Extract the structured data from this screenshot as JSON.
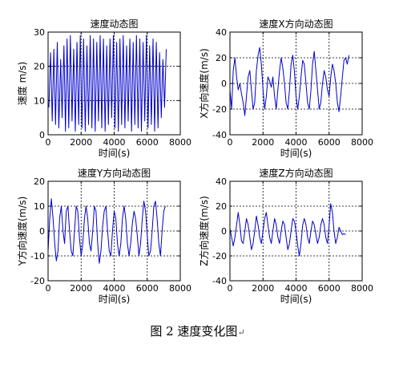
{
  "figure_caption": {
    "text": "图 2  速度变化图",
    "trailing_mark": "↵"
  },
  "chart_data": [
    {
      "type": "line",
      "title": "速度动态图",
      "xlabel": "时间(s)",
      "ylabel": "速度 m/s)",
      "xlim": [
        0,
        8000
      ],
      "ylim": [
        0,
        30
      ],
      "xticks": [
        0,
        2000,
        4000,
        6000,
        8000
      ],
      "yticks": [
        0,
        10,
        20,
        30
      ],
      "grid": "dashed",
      "color": "#0000cc",
      "series": [
        {
          "x": [
            50,
            150,
            250,
            350,
            450,
            560,
            650,
            760,
            850,
            960,
            1050,
            1150,
            1250,
            1350,
            1450,
            1550,
            1650,
            1750,
            1850,
            1950,
            2050,
            2150,
            2250,
            2350,
            2450,
            2550,
            2650,
            2750,
            2850,
            2950,
            3050,
            3150,
            3250,
            3350,
            3450,
            3550,
            3650,
            3750,
            3850,
            3950,
            4050,
            4150,
            4250,
            4350,
            4450,
            4550,
            4650,
            4750,
            4850,
            4950,
            5050,
            5150,
            5250,
            5350,
            5450,
            5550,
            5650,
            5750,
            5850,
            5950,
            6050,
            6150,
            6250,
            6350,
            6450,
            6550,
            6650,
            6750,
            6850,
            6950,
            7050,
            7150
          ],
          "values": [
            8,
            24,
            4,
            25,
            3,
            27,
            2,
            22,
            5,
            26,
            1,
            28,
            2,
            29,
            4,
            25,
            1,
            27,
            3,
            29,
            2,
            28,
            1,
            26,
            3,
            29,
            2,
            28,
            1,
            27,
            4,
            29,
            2,
            28,
            1,
            26,
            3,
            28,
            5,
            29,
            2,
            27,
            1,
            28,
            3,
            29,
            2,
            26,
            4,
            28,
            1,
            27,
            3,
            29,
            2,
            28,
            1,
            27,
            4,
            29,
            2,
            26,
            3,
            28,
            1,
            27,
            2,
            24,
            5,
            22,
            8,
            25
          ]
        }
      ]
    },
    {
      "type": "line",
      "title": "速度X方向动态图",
      "xlabel": "时间(s)",
      "ylabel": "X方向速度(m/s)",
      "xlim": [
        0,
        8000
      ],
      "ylim": [
        -40,
        40
      ],
      "xticks": [
        0,
        2000,
        4000,
        6000,
        8000
      ],
      "yticks": [
        -40,
        -20,
        0,
        20,
        40
      ],
      "grid": "dashed",
      "color": "#0000cc",
      "series": [
        {
          "x": [
            0,
            100,
            200,
            300,
            400,
            500,
            600,
            700,
            800,
            900,
            1000,
            1100,
            1200,
            1300,
            1400,
            1500,
            1600,
            1700,
            1800,
            1900,
            2000,
            2100,
            2200,
            2300,
            2400,
            2500,
            2600,
            2700,
            2800,
            2900,
            3000,
            3100,
            3200,
            3300,
            3400,
            3500,
            3600,
            3700,
            3800,
            3900,
            4000,
            4100,
            4200,
            4300,
            4400,
            4500,
            4600,
            4700,
            4800,
            4900,
            5000,
            5100,
            5200,
            5300,
            5400,
            5500,
            5600,
            5700,
            5800,
            5900,
            6000,
            6100,
            6200,
            6300,
            6400,
            6500,
            6600,
            6700,
            6800,
            6900,
            7000,
            7100,
            7200
          ],
          "values": [
            -5,
            -20,
            10,
            20,
            5,
            -5,
            0,
            -8,
            -15,
            -25,
            -10,
            5,
            10,
            -5,
            -20,
            -15,
            10,
            22,
            28,
            15,
            -5,
            -20,
            -10,
            5,
            2,
            -3,
            5,
            -10,
            -20,
            -5,
            10,
            20,
            12,
            0,
            -15,
            -20,
            -5,
            15,
            22,
            10,
            -10,
            -20,
            -10,
            5,
            18,
            15,
            0,
            -15,
            -20,
            -5,
            15,
            25,
            10,
            -5,
            -20,
            -15,
            0,
            10,
            5,
            -5,
            -10,
            5,
            15,
            10,
            0,
            -15,
            -22,
            -10,
            5,
            18,
            20,
            15,
            22
          ]
        }
      ]
    },
    {
      "type": "line",
      "title": "速度Y方向动态图",
      "xlabel": "时间(s)",
      "ylabel": "Y方向速度(m/s)",
      "xlim": [
        0,
        8000
      ],
      "ylim": [
        -20,
        20
      ],
      "xticks": [
        0,
        2000,
        4000,
        6000,
        8000
      ],
      "yticks": [
        -20,
        -10,
        0,
        10,
        20
      ],
      "grid": "dashed",
      "color": "#0000cc",
      "series": [
        {
          "x": [
            0,
            100,
            200,
            300,
            400,
            500,
            600,
            700,
            800,
            900,
            1000,
            1100,
            1200,
            1300,
            1400,
            1500,
            1600,
            1700,
            1800,
            1900,
            2000,
            2100,
            2200,
            2300,
            2400,
            2500,
            2600,
            2700,
            2800,
            2900,
            3000,
            3100,
            3200,
            3300,
            3400,
            3500,
            3600,
            3700,
            3800,
            3900,
            4000,
            4100,
            4200,
            4300,
            4400,
            4500,
            4600,
            4700,
            4800,
            4900,
            5000,
            5100,
            5200,
            5300,
            5400,
            5500,
            5600,
            5700,
            5800,
            5900,
            6000,
            6100,
            6200,
            6300,
            6400,
            6500,
            6600,
            6700,
            6800,
            6900,
            7000,
            7100
          ],
          "values": [
            -8,
            5,
            13,
            5,
            -5,
            -12,
            -8,
            5,
            10,
            0,
            -5,
            8,
            10,
            0,
            -8,
            -10,
            0,
            10,
            8,
            -3,
            -10,
            -5,
            5,
            10,
            5,
            -5,
            -8,
            0,
            10,
            8,
            -5,
            -13,
            -8,
            2,
            8,
            10,
            0,
            -8,
            -10,
            0,
            8,
            5,
            -5,
            -10,
            -5,
            5,
            10,
            5,
            -5,
            -10,
            -5,
            3,
            8,
            5,
            -2,
            -10,
            -5,
            5,
            12,
            8,
            -2,
            -10,
            -8,
            0,
            10,
            12,
            5,
            -5,
            -10,
            0,
            8,
            10
          ]
        }
      ]
    },
    {
      "type": "line",
      "title": "速度Z方向动态图",
      "xlabel": "时间(s)",
      "ylabel": "Z方向速度(m/s)",
      "xlim": [
        0,
        8000
      ],
      "ylim": [
        -40,
        40
      ],
      "xticks": [
        0,
        2000,
        4000,
        6000,
        8000
      ],
      "yticks": [
        -40,
        -20,
        0,
        20,
        40
      ],
      "grid": "dashed",
      "color": "#0000cc",
      "series": [
        {
          "x": [
            0,
            100,
            200,
            300,
            400,
            500,
            600,
            700,
            800,
            900,
            1000,
            1100,
            1200,
            1300,
            1400,
            1500,
            1600,
            1700,
            1800,
            1900,
            2000,
            2100,
            2200,
            2300,
            2400,
            2500,
            2600,
            2700,
            2800,
            2900,
            3000,
            3100,
            3200,
            3300,
            3400,
            3500,
            3600,
            3700,
            3800,
            3900,
            4000,
            4100,
            4200,
            4300,
            4400,
            4500,
            4600,
            4700,
            4800,
            4900,
            5000,
            5100,
            5200,
            5300,
            5400,
            5500,
            5600,
            5700,
            5800,
            5900,
            6000,
            6100,
            6200,
            6300,
            6400,
            6500,
            6600,
            6700,
            6800,
            6900,
            7000
          ],
          "values": [
            2,
            -5,
            -12,
            -5,
            5,
            15,
            5,
            -8,
            -10,
            0,
            10,
            5,
            -5,
            -15,
            -10,
            0,
            12,
            5,
            -5,
            -10,
            0,
            10,
            15,
            5,
            -5,
            -10,
            0,
            10,
            5,
            -5,
            -10,
            0,
            8,
            5,
            -5,
            -15,
            -10,
            0,
            10,
            8,
            0,
            -12,
            -20,
            -10,
            5,
            10,
            5,
            -5,
            -10,
            0,
            8,
            5,
            -3,
            -10,
            -5,
            5,
            10,
            5,
            -5,
            -10,
            5,
            22,
            15,
            0,
            -10,
            -5,
            3,
            0,
            -3,
            -2,
            -3
          ]
        }
      ]
    }
  ]
}
